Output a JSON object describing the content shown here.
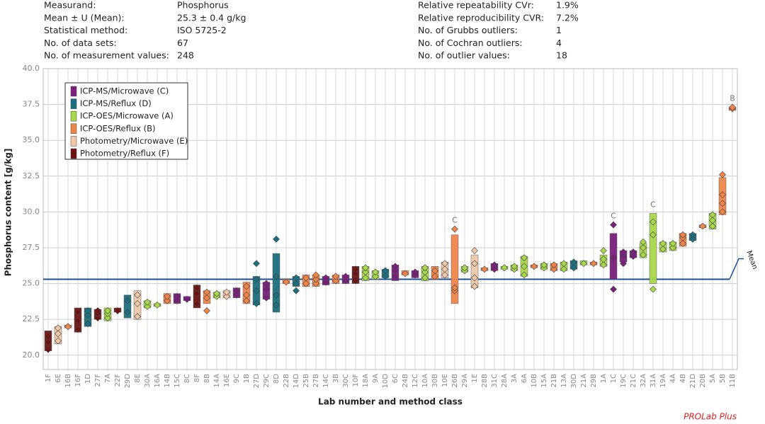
{
  "header": {
    "left": [
      [
        "Measurand:",
        "Phosphorus"
      ],
      [
        "Mean ± U (Mean):",
        "25.3 ± 0.4 g/kg"
      ],
      [
        "Statistical method:",
        "ISO 5725-2"
      ],
      [
        "No. of data sets:",
        "67"
      ],
      [
        "No. of measurement values:",
        "248"
      ]
    ],
    "right": [
      [
        "Relative repeatability CVr:",
        "1.9%"
      ],
      [
        "Relative reproducibility CVR:",
        "7.2%"
      ],
      [
        "No. of Grubbs outliers:",
        "1"
      ],
      [
        "No. of Cochran outliers:",
        "4"
      ],
      [
        "No. of outlier values:",
        "18"
      ]
    ]
  },
  "chart_data": {
    "type": "range",
    "y_label": "Phosphorus content [g/kg]",
    "x_label": "Lab number and method class",
    "footer": "PROLab Plus",
    "ylim": [
      19,
      40
    ],
    "yticks": [
      {
        "value": 20,
        "label": "20.0"
      },
      {
        "value": 22.5,
        "label": "22.5"
      },
      {
        "value": 25,
        "label": "25.0"
      },
      {
        "value": 27.5,
        "label": "27.5"
      },
      {
        "value": 30,
        "label": "30.0"
      },
      {
        "value": 32.5,
        "label": "32.5"
      },
      {
        "value": 35,
        "label": "35.0"
      },
      {
        "value": 37.5,
        "label": "37.5"
      },
      {
        "value": 40,
        "label": "40.0"
      }
    ],
    "grid": true,
    "mean": 25.3,
    "mean_label": "Mean",
    "series": [
      {
        "name": "ICP-MS/Microwave (C)",
        "color": "#7b1f7d"
      },
      {
        "name": "ICP-MS/Reflux (D)",
        "color": "#1c6f7e"
      },
      {
        "name": "ICP-OES/Microwave (A)",
        "color": "#a9d84c"
      },
      {
        "name": "ICP-OES/Reflux (B)",
        "color": "#f0854a"
      },
      {
        "name": "Photometry/Microwave (E)",
        "color": "#efc9aa"
      },
      {
        "name": "Photometry/Reflux (F)",
        "color": "#6e1212"
      }
    ],
    "labs": [
      {
        "label": "1F",
        "low": 20.3,
        "high": 21.7,
        "points": [
          20.4,
          20.9,
          21.3
        ]
      },
      {
        "label": "6E",
        "low": 20.8,
        "high": 22.0,
        "points": [
          21.0,
          21.5,
          21.9
        ]
      },
      {
        "label": "16B",
        "low": 21.9,
        "high": 22.1,
        "points": [
          22.0
        ]
      },
      {
        "label": "16F",
        "low": 21.6,
        "high": 23.3,
        "points": [
          21.8,
          22.4,
          23.0
        ]
      },
      {
        "label": "1D",
        "low": 22.0,
        "high": 23.3,
        "points": [
          22.2,
          22.8,
          23.1
        ]
      },
      {
        "label": "27F",
        "low": 22.5,
        "high": 23.2,
        "points": [
          22.6,
          22.9,
          23.1
        ]
      },
      {
        "label": "7A",
        "low": 22.4,
        "high": 23.3,
        "points": [
          22.6,
          22.9,
          23.1
        ]
      },
      {
        "label": "22F",
        "low": 23.0,
        "high": 23.3,
        "points": [
          23.1
        ]
      },
      {
        "label": "29D",
        "low": 22.6,
        "high": 24.2,
        "points": [
          23.0,
          23.8
        ]
      },
      {
        "label": "8E",
        "low": 22.5,
        "high": 24.5,
        "points": [
          22.7,
          23.6,
          24.2
        ]
      },
      {
        "label": "30A",
        "low": 23.3,
        "high": 23.8,
        "points": [
          23.4,
          23.7
        ]
      },
      {
        "label": "16A",
        "low": 23.4,
        "high": 23.6,
        "points": [
          23.5
        ]
      },
      {
        "label": "14B",
        "low": 23.6,
        "high": 24.3,
        "points": [
          23.8,
          24.1
        ]
      },
      {
        "label": "15C",
        "low": 23.6,
        "high": 24.3,
        "points": [
          23.8,
          24.1
        ]
      },
      {
        "label": "8C",
        "low": 23.8,
        "high": 24.1,
        "points": [
          23.9
        ]
      },
      {
        "label": "8F",
        "low": 23.3,
        "high": 24.9,
        "points": [
          23.6,
          24.3,
          24.7
        ]
      },
      {
        "label": "8B",
        "low": 23.6,
        "high": 24.5,
        "points": [
          23.1,
          24.0,
          24.4
        ]
      },
      {
        "label": "14A",
        "low": 24.0,
        "high": 24.4,
        "points": [
          24.1,
          24.3
        ]
      },
      {
        "label": "16E",
        "low": 24.0,
        "high": 24.5,
        "points": [
          24.1,
          24.4
        ]
      },
      {
        "label": "9C",
        "low": 24.0,
        "high": 24.7,
        "points": [
          24.2,
          24.5
        ]
      },
      {
        "label": "1B",
        "low": 23.6,
        "high": 25.1,
        "points": [
          23.8,
          24.2,
          24.8
        ]
      },
      {
        "label": "27D",
        "low": 23.5,
        "high": 25.5,
        "points": [
          23.6,
          24.5,
          25.3,
          26.4
        ]
      },
      {
        "label": "29C",
        "low": 23.9,
        "high": 25.1,
        "points": [
          24.0,
          24.6,
          25.0
        ]
      },
      {
        "label": "8D",
        "low": 23.0,
        "high": 27.1,
        "points": [
          23.5,
          24.2,
          25.5,
          28.1
        ]
      },
      {
        "label": "22B",
        "low": 25.0,
        "high": 25.3,
        "points": [
          25.1
        ]
      },
      {
        "label": "14D",
        "low": 24.8,
        "high": 25.5,
        "points": [
          24.5,
          25.0,
          25.4
        ]
      },
      {
        "label": "25B",
        "low": 24.8,
        "high": 25.6,
        "points": [
          25.0,
          25.4
        ]
      },
      {
        "label": "27B",
        "low": 24.8,
        "high": 25.6,
        "points": [
          25.0,
          25.3,
          25.6
        ]
      },
      {
        "label": "14C",
        "low": 24.9,
        "high": 25.5,
        "points": [
          25.1,
          25.4
        ]
      },
      {
        "label": "3B",
        "low": 25.0,
        "high": 25.6,
        "points": [
          25.2,
          25.5
        ]
      },
      {
        "label": "30C",
        "low": 25.0,
        "high": 25.6,
        "points": [
          25.2,
          25.5
        ]
      },
      {
        "label": "10F",
        "low": 25.0,
        "high": 26.2,
        "points": [
          25.2,
          25.7,
          26.0
        ]
      },
      {
        "label": "18A",
        "low": 25.2,
        "high": 26.2,
        "points": [
          25.4,
          25.8,
          26.1
        ]
      },
      {
        "label": "9A",
        "low": 25.3,
        "high": 25.9,
        "points": [
          25.5,
          25.8
        ]
      },
      {
        "label": "10D",
        "low": 25.4,
        "high": 26.0,
        "points": [
          25.5,
          25.9
        ]
      },
      {
        "label": "6C",
        "low": 25.2,
        "high": 26.3,
        "points": [
          25.5,
          25.9,
          26.2
        ]
      },
      {
        "label": "24B",
        "low": 25.6,
        "high": 25.9,
        "points": [
          25.7
        ]
      },
      {
        "label": "12C",
        "low": 25.4,
        "high": 25.9,
        "points": [
          25.6,
          25.8
        ]
      },
      {
        "label": "10A",
        "low": 25.2,
        "high": 26.2,
        "points": [
          25.4,
          25.8,
          26.1
        ]
      },
      {
        "label": "30B",
        "low": 25.3,
        "high": 26.2,
        "points": [
          25.5,
          25.9
        ]
      },
      {
        "label": "10E",
        "low": 25.4,
        "high": 26.5,
        "points": [
          25.6,
          26.0,
          26.4
        ]
      },
      {
        "label": "26B",
        "low": 23.6,
        "high": 28.4,
        "points": [
          24.5,
          24.7,
          28.8
        ],
        "flag": "C"
      },
      {
        "label": "29A",
        "low": 25.8,
        "high": 26.2,
        "points": [
          25.9,
          26.1
        ]
      },
      {
        "label": "1E",
        "low": 24.7,
        "high": 27.0,
        "points": [
          24.8,
          25.4,
          26.4,
          27.3
        ]
      },
      {
        "label": "28B",
        "low": 25.9,
        "high": 26.1,
        "points": [
          26.0
        ]
      },
      {
        "label": "31C",
        "low": 25.9,
        "high": 26.4,
        "points": [
          26.0,
          26.3
        ]
      },
      {
        "label": "28A",
        "low": 26.0,
        "high": 26.2,
        "points": [
          26.1
        ]
      },
      {
        "label": "3A",
        "low": 25.9,
        "high": 26.3,
        "points": [
          26.0,
          26.2
        ]
      },
      {
        "label": "6A",
        "low": 25.5,
        "high": 26.9,
        "points": [
          25.6,
          26.2,
          26.8
        ]
      },
      {
        "label": "10B",
        "low": 26.1,
        "high": 26.3,
        "points": [
          26.2
        ]
      },
      {
        "label": "15A",
        "low": 26.0,
        "high": 26.4,
        "points": [
          26.1,
          26.3
        ]
      },
      {
        "label": "21B",
        "low": 25.9,
        "high": 26.4,
        "points": [
          26.0,
          26.3
        ]
      },
      {
        "label": "13A",
        "low": 25.9,
        "high": 26.5,
        "points": [
          26.0,
          26.4
        ]
      },
      {
        "label": "30D",
        "low": 26.0,
        "high": 26.6,
        "points": [
          26.1,
          26.5
        ]
      },
      {
        "label": "21A",
        "low": 26.3,
        "high": 26.6,
        "points": [
          26.4
        ]
      },
      {
        "label": "29B",
        "low": 26.3,
        "high": 26.5,
        "points": [
          26.4
        ]
      },
      {
        "label": "1A",
        "low": 26.2,
        "high": 27.0,
        "points": [
          26.3,
          26.7,
          27.3
        ]
      },
      {
        "label": "1C",
        "low": 25.3,
        "high": 28.5,
        "points": [
          24.6,
          26.8,
          29.1
        ],
        "flag": "C"
      },
      {
        "label": "19C",
        "low": 26.5,
        "high": 27.3,
        "points": [
          26.4,
          26.9,
          27.2
        ]
      },
      {
        "label": "21C",
        "low": 26.8,
        "high": 27.3,
        "points": [
          26.9,
          27.2
        ]
      },
      {
        "label": "32A",
        "low": 26.8,
        "high": 27.8,
        "points": [
          27.0,
          27.5,
          27.9
        ]
      },
      {
        "label": "31A",
        "low": 25.0,
        "high": 29.9,
        "points": [
          24.6,
          28.4,
          29.3
        ],
        "flag": "C"
      },
      {
        "label": "19A",
        "low": 27.2,
        "high": 27.9,
        "points": [
          27.4,
          27.8
        ]
      },
      {
        "label": "4A",
        "low": 27.3,
        "high": 27.9,
        "points": [
          27.5,
          27.8
        ]
      },
      {
        "label": "4B",
        "low": 27.6,
        "high": 28.5,
        "points": [
          27.8,
          28.2,
          28.4
        ]
      },
      {
        "label": "21D",
        "low": 28.0,
        "high": 28.5,
        "points": [
          28.1,
          28.4
        ]
      },
      {
        "label": "20B",
        "low": 28.9,
        "high": 29.1,
        "points": [
          29.0
        ]
      },
      {
        "label": "5A",
        "low": 28.8,
        "high": 29.9,
        "points": [
          29.0,
          29.4,
          29.8
        ]
      },
      {
        "label": "5B",
        "low": 29.8,
        "high": 32.4,
        "points": [
          30.0,
          30.6,
          31.2,
          32.6
        ]
      },
      {
        "label": "11B",
        "low": 37.1,
        "high": 37.3,
        "points": [
          37.2,
          37.3
        ],
        "flag": "B"
      }
    ]
  }
}
